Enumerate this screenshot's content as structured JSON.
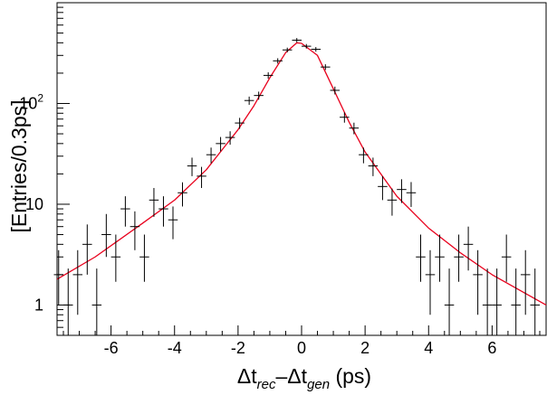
{
  "chart_data": {
    "type": "scatter",
    "ylabel": "[Entries/0.3ps]",
    "xlabel": {
      "parts": [
        {
          "text": "Δt",
          "style": "normal"
        },
        {
          "text": "rec",
          "style": "sub"
        },
        {
          "text": "–Δt",
          "style": "normal"
        },
        {
          "text": "gen",
          "style": "sub"
        },
        {
          "text": " (ps)",
          "style": "normal"
        }
      ]
    },
    "xlim": [
      -7.7,
      7.7
    ],
    "ylim": [
      0.5,
      1000
    ],
    "yscale": "log",
    "x_ticks": [
      "-6",
      "-4",
      "-2",
      "0",
      "2",
      "4",
      "6"
    ],
    "y_ticks": [
      "1",
      "10",
      "10²"
    ],
    "grid": false,
    "colors": {
      "data": "#000000",
      "fit": "#e8001c"
    },
    "series": [
      {
        "style": "points-with-errors",
        "x_bin_width": 0.3,
        "points": [
          {
            "x": -7.65,
            "y": 2,
            "ylo": 1,
            "yhi": 3.5
          },
          {
            "x": -7.35,
            "y": 1,
            "ylo": 0.5,
            "yhi": 2.3
          },
          {
            "x": -7.05,
            "y": 2,
            "ylo": 0.8,
            "yhi": 3.5
          },
          {
            "x": -6.75,
            "y": 4,
            "ylo": 2,
            "yhi": 6.3
          },
          {
            "x": -6.45,
            "y": 1,
            "ylo": 0.5,
            "yhi": 2.3
          },
          {
            "x": -6.15,
            "y": 5,
            "ylo": 3,
            "yhi": 8
          },
          {
            "x": -5.85,
            "y": 3,
            "ylo": 1.7,
            "yhi": 5
          },
          {
            "x": -5.55,
            "y": 9,
            "ylo": 6,
            "yhi": 12
          },
          {
            "x": -5.25,
            "y": 6,
            "ylo": 3.5,
            "yhi": 8.5
          },
          {
            "x": -4.95,
            "y": 3,
            "ylo": 1.7,
            "yhi": 5
          },
          {
            "x": -4.65,
            "y": 11,
            "ylo": 7.5,
            "yhi": 14.5
          },
          {
            "x": -4.35,
            "y": 9,
            "ylo": 6,
            "yhi": 12
          },
          {
            "x": -4.05,
            "y": 7,
            "ylo": 4.5,
            "yhi": 9.5
          },
          {
            "x": -3.75,
            "y": 13,
            "ylo": 9.5,
            "yhi": 16.5
          },
          {
            "x": -3.45,
            "y": 24,
            "ylo": 19,
            "yhi": 29
          },
          {
            "x": -3.15,
            "y": 19,
            "ylo": 14.5,
            "yhi": 23.5
          },
          {
            "x": -2.85,
            "y": 31,
            "ylo": 25.5,
            "yhi": 36.5
          },
          {
            "x": -2.55,
            "y": 40,
            "ylo": 33.5,
            "yhi": 46.5
          },
          {
            "x": -2.25,
            "y": 46,
            "ylo": 39,
            "yhi": 53
          },
          {
            "x": -1.95,
            "y": 64,
            "ylo": 56,
            "yhi": 72
          },
          {
            "x": -1.65,
            "y": 107,
            "ylo": 97,
            "yhi": 117
          },
          {
            "x": -1.35,
            "y": 120,
            "ylo": 109,
            "yhi": 131
          },
          {
            "x": -1.05,
            "y": 190,
            "ylo": 176,
            "yhi": 204
          },
          {
            "x": -0.75,
            "y": 265,
            "ylo": 249,
            "yhi": 281
          },
          {
            "x": -0.45,
            "y": 340,
            "ylo": 322,
            "yhi": 358
          },
          {
            "x": -0.15,
            "y": 425,
            "ylo": 404,
            "yhi": 446
          },
          {
            "x": 0.15,
            "y": 370,
            "ylo": 351,
            "yhi": 389
          },
          {
            "x": 0.45,
            "y": 345,
            "ylo": 327,
            "yhi": 363
          },
          {
            "x": 0.75,
            "y": 230,
            "ylo": 215,
            "yhi": 245
          },
          {
            "x": 1.05,
            "y": 135,
            "ylo": 123,
            "yhi": 147
          },
          {
            "x": 1.35,
            "y": 73,
            "ylo": 64.5,
            "yhi": 81.5
          },
          {
            "x": 1.65,
            "y": 57,
            "ylo": 49.5,
            "yhi": 64.5
          },
          {
            "x": 1.95,
            "y": 31,
            "ylo": 25.5,
            "yhi": 36.5
          },
          {
            "x": 2.25,
            "y": 24,
            "ylo": 19,
            "yhi": 29
          },
          {
            "x": 2.55,
            "y": 15,
            "ylo": 11,
            "yhi": 19
          },
          {
            "x": 2.85,
            "y": 11,
            "ylo": 7.7,
            "yhi": 14.3
          },
          {
            "x": 3.15,
            "y": 14,
            "ylo": 10.3,
            "yhi": 17.7
          },
          {
            "x": 3.45,
            "y": 13,
            "ylo": 9.4,
            "yhi": 16.6
          },
          {
            "x": 3.75,
            "y": 3,
            "ylo": 1.7,
            "yhi": 5
          },
          {
            "x": 4.05,
            "y": 2,
            "ylo": 0.8,
            "yhi": 3.5
          },
          {
            "x": 4.35,
            "y": 3,
            "ylo": 1.7,
            "yhi": 5
          },
          {
            "x": 4.65,
            "y": 1,
            "ylo": 0.5,
            "yhi": 2.3
          },
          {
            "x": 4.95,
            "y": 3,
            "ylo": 1.7,
            "yhi": 5
          },
          {
            "x": 5.25,
            "y": 4,
            "ylo": 2.2,
            "yhi": 6
          },
          {
            "x": 5.55,
            "y": 2,
            "ylo": 0.8,
            "yhi": 3.5
          },
          {
            "x": 5.85,
            "y": 1,
            "ylo": 0.5,
            "yhi": 2.3
          },
          {
            "x": 6.15,
            "y": 1,
            "ylo": 0.5,
            "yhi": 2.3
          },
          {
            "x": 6.45,
            "y": 3,
            "ylo": 1.7,
            "yhi": 5
          },
          {
            "x": 6.75,
            "y": 1,
            "ylo": 0.5,
            "yhi": 2.3
          },
          {
            "x": 7.05,
            "y": 2,
            "ylo": 0.8,
            "yhi": 3.5
          },
          {
            "x": 7.35,
            "y": 1,
            "ylo": 0.5,
            "yhi": 2.3
          }
        ]
      },
      {
        "style": "fit-curve",
        "points": [
          {
            "x": -7.7,
            "y": 1.8
          },
          {
            "x": -6.5,
            "y": 3.0
          },
          {
            "x": -5.0,
            "y": 6.5
          },
          {
            "x": -4.0,
            "y": 11
          },
          {
            "x": -3.0,
            "y": 22
          },
          {
            "x": -2.0,
            "y": 55
          },
          {
            "x": -1.5,
            "y": 95
          },
          {
            "x": -1.0,
            "y": 180
          },
          {
            "x": -0.5,
            "y": 320
          },
          {
            "x": -0.15,
            "y": 400
          },
          {
            "x": 0.0,
            "y": 395
          },
          {
            "x": 0.5,
            "y": 300
          },
          {
            "x": 1.0,
            "y": 140
          },
          {
            "x": 1.5,
            "y": 65
          },
          {
            "x": 2.0,
            "y": 33
          },
          {
            "x": 3.0,
            "y": 12
          },
          {
            "x": 4.0,
            "y": 5.8
          },
          {
            "x": 5.0,
            "y": 3.3
          },
          {
            "x": 6.0,
            "y": 2.0
          },
          {
            "x": 7.7,
            "y": 1.0
          }
        ]
      }
    ]
  }
}
